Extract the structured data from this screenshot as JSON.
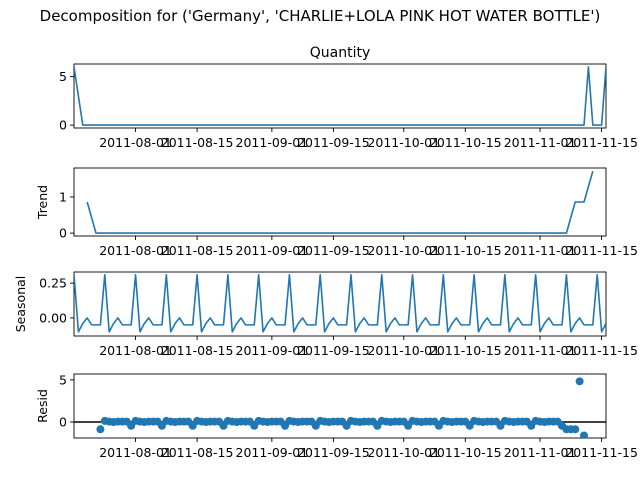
{
  "figure": {
    "title": "Decomposition for ('Germany', 'CHARLIE+LOLA PINK HOT WATER BOTTLE')"
  },
  "colors": {
    "series": "#1f77b4",
    "zero_line": "#000000"
  },
  "chart_data": [
    {
      "type": "line",
      "title": "Quantity",
      "xlabel": "",
      "ylabel": "",
      "x_range": [
        "2011-07-18",
        "2011-11-16"
      ],
      "ylim": [
        -0.3,
        6.3
      ],
      "yticks": [
        0,
        5
      ],
      "xticks": [
        "2011-08-01",
        "2011-08-15",
        "2011-09-01",
        "2011-09-15",
        "2011-10-01",
        "2011-10-15",
        "2011-11-01",
        "2011-11-15"
      ],
      "x": [
        "2011-07-18",
        "2011-07-20",
        "2011-11-11",
        "2011-11-12",
        "2011-11-13",
        "2011-11-14",
        "2011-11-15",
        "2011-11-16"
      ],
      "values": [
        6,
        0,
        0,
        6,
        0,
        0,
        0,
        6
      ]
    },
    {
      "type": "line",
      "title": "",
      "xlabel": "",
      "ylabel": "Trend",
      "x_range": [
        "2011-07-18",
        "2011-11-16"
      ],
      "ylim": [
        -0.08,
        1.8
      ],
      "yticks": [
        0,
        1
      ],
      "xticks": [
        "2011-08-01",
        "2011-08-15",
        "2011-09-01",
        "2011-09-15",
        "2011-10-01",
        "2011-10-15",
        "2011-11-01",
        "2011-11-15"
      ],
      "x": [
        "2011-07-21",
        "2011-07-23",
        "2011-11-07",
        "2011-11-09",
        "2011-11-11",
        "2011-11-13"
      ],
      "values": [
        0.86,
        0,
        0,
        0.86,
        0.86,
        1.71
      ]
    },
    {
      "type": "line",
      "title": "",
      "xlabel": "",
      "ylabel": "Seasonal",
      "x_range": [
        "2011-07-18",
        "2011-11-16"
      ],
      "ylim": [
        -0.13,
        0.33
      ],
      "yticks": [
        0.25,
        0.0
      ],
      "ytick_labels": [
        "0.25",
        "0.00"
      ],
      "xticks": [
        "2011-08-01",
        "2011-08-15",
        "2011-09-01",
        "2011-09-15",
        "2011-10-01",
        "2011-10-15",
        "2011-11-01",
        "2011-11-15"
      ],
      "period": 7,
      "x_start": "2011-07-18",
      "pattern": [
        0.31,
        -0.1,
        -0.04,
        0.0,
        -0.05,
        -0.05,
        -0.05
      ],
      "values_count": 122
    },
    {
      "type": "scatter",
      "title": "",
      "xlabel": "",
      "ylabel": "Resid",
      "x_range": [
        "2011-07-18",
        "2011-11-16"
      ],
      "ylim": [
        -1.9,
        5.7
      ],
      "yticks": [
        0,
        5
      ],
      "zero_line": true,
      "xticks": [
        "2011-08-01",
        "2011-08-15",
        "2011-09-01",
        "2011-09-15",
        "2011-10-01",
        "2011-10-15",
        "2011-11-01",
        "2011-11-15"
      ],
      "x_start": "2011-07-24",
      "pattern": [
        0.13,
        0.05,
        0.0,
        0.05,
        0.05,
        0.05,
        -0.45
      ],
      "first_value": -0.86,
      "tail": [
        {
          "x": "2011-11-07",
          "y": -0.86
        },
        {
          "x": "2011-11-08",
          "y": -0.86
        },
        {
          "x": "2011-11-09",
          "y": -0.86
        },
        {
          "x": "2011-11-10",
          "y": 4.83
        },
        {
          "x": "2011-11-11",
          "y": -1.6
        }
      ]
    }
  ]
}
